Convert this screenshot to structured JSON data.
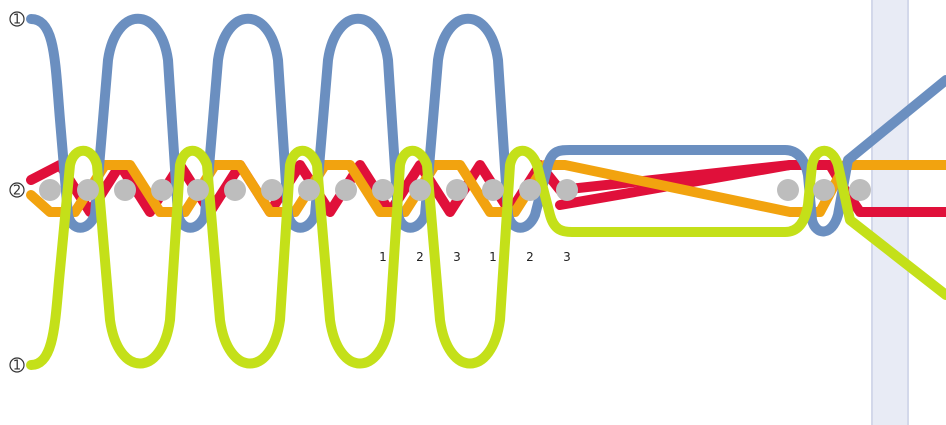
{
  "markers": {
    "top": "1",
    "middle": "2",
    "bottom": "1"
  },
  "step_labels": [
    "1",
    "2",
    "3",
    "1",
    "2",
    "3"
  ],
  "colors": {
    "blue": "#6b8fc0",
    "red": "#e0103a",
    "green": "#c4e019",
    "orange": "#f2a30f",
    "bead": "#bdbdbd",
    "band": "#e8ebf5"
  }
}
